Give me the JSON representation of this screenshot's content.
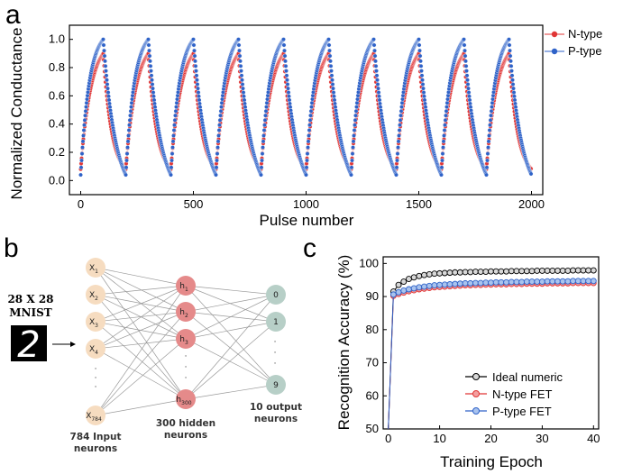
{
  "panels": {
    "a": "a",
    "b": "b",
    "c": "c"
  },
  "chart_data": [
    {
      "id": "a",
      "type": "scatter",
      "xlabel": "Pulse number",
      "ylabel": "Normalized Conductance",
      "xlim": [
        -50,
        2050
      ],
      "ylim": [
        -0.1,
        1.1
      ],
      "xticks": [
        0,
        500,
        1000,
        1500,
        2000
      ],
      "yticks": [
        0.0,
        0.2,
        0.4,
        0.6,
        0.8,
        1.0
      ],
      "legend_position": "top-right",
      "cycles": 10,
      "pulses_per_cycle": 200,
      "series": [
        {
          "name": "N-type",
          "color": "#e03535",
          "peak": 0.9,
          "min": 0.08,
          "rise_shape": 2.2,
          "fall_shape": 2.6
        },
        {
          "name": "P-type",
          "color": "#2e62c8",
          "peak": 1.0,
          "min": 0.04,
          "rise_shape": 2.6,
          "fall_shape": 1.8
        }
      ]
    },
    {
      "id": "c",
      "type": "line",
      "xlabel": "Training Epoch",
      "ylabel": "Recognition Accuracy (%)",
      "xlim": [
        -1,
        41
      ],
      "ylim": [
        50,
        102
      ],
      "xticks": [
        0,
        10,
        20,
        30,
        40
      ],
      "yticks": [
        50,
        60,
        70,
        80,
        90,
        100
      ],
      "legend_position": "bottom-right",
      "x": [
        0,
        1,
        2,
        3,
        4,
        5,
        6,
        7,
        8,
        9,
        10,
        11,
        12,
        13,
        14,
        15,
        16,
        17,
        18,
        19,
        20,
        21,
        22,
        23,
        24,
        25,
        26,
        27,
        28,
        29,
        30,
        31,
        32,
        33,
        34,
        35,
        36,
        37,
        38,
        39,
        40
      ],
      "series": [
        {
          "name": "Ideal numeric",
          "color": "#000000",
          "fill": "#d8d8d8",
          "values": [
            50,
            91.5,
            93.5,
            94.5,
            95.3,
            95.8,
            96.2,
            96.5,
            96.7,
            96.9,
            97.0,
            97.1,
            97.2,
            97.3,
            97.3,
            97.4,
            97.4,
            97.5,
            97.5,
            97.5,
            97.6,
            97.6,
            97.6,
            97.6,
            97.7,
            97.7,
            97.7,
            97.7,
            97.7,
            97.8,
            97.8,
            97.8,
            97.8,
            97.8,
            97.8,
            97.8,
            97.9,
            97.9,
            97.9,
            97.9,
            97.9
          ]
        },
        {
          "name": "N-type FET",
          "color": "#e03535",
          "fill": "#f3a0a0",
          "values": [
            50,
            90.2,
            90.8,
            91.2,
            91.6,
            91.9,
            92.2,
            92.4,
            92.6,
            92.8,
            92.9,
            93.0,
            93.1,
            93.2,
            93.3,
            93.4,
            93.4,
            93.5,
            93.5,
            93.6,
            93.6,
            93.7,
            93.7,
            93.7,
            93.8,
            93.8,
            93.8,
            93.9,
            93.9,
            93.9,
            93.9,
            94.0,
            94.0,
            94.0,
            94.0,
            94.0,
            94.1,
            94.1,
            94.1,
            94.1,
            94.1
          ]
        },
        {
          "name": "P-type FET",
          "color": "#2e62c8",
          "fill": "#a9c3ee",
          "values": [
            50,
            90.6,
            91.3,
            91.8,
            92.2,
            92.5,
            92.8,
            93.0,
            93.2,
            93.4,
            93.5,
            93.6,
            93.7,
            93.8,
            93.9,
            94.0,
            94.0,
            94.1,
            94.1,
            94.2,
            94.2,
            94.3,
            94.3,
            94.3,
            94.4,
            94.4,
            94.4,
            94.5,
            94.5,
            94.5,
            94.5,
            94.6,
            94.6,
            94.6,
            94.6,
            94.6,
            94.7,
            94.7,
            94.7,
            94.7,
            94.7
          ]
        }
      ]
    }
  ],
  "network": {
    "mnist_caption_line1": "28 X 28",
    "mnist_caption_line2": "MNIST",
    "mnist_digit": "2",
    "input_nodes": [
      "X1",
      "X2",
      "X3",
      "X4",
      "X784"
    ],
    "input_node_main": [
      "X",
      "X",
      "X",
      "X",
      "X"
    ],
    "input_node_sub": [
      "1",
      "2",
      "3",
      "4",
      "784"
    ],
    "hidden_node_main": [
      "h",
      "h",
      "h",
      "h"
    ],
    "hidden_node_sub": [
      "1",
      "2",
      "3",
      "300"
    ],
    "output_nodes": [
      "0",
      "1",
      "9"
    ],
    "input_caption_line1": "784 Input",
    "input_caption_line2": "neurons",
    "hidden_caption_line1": "300 hidden",
    "hidden_caption_line2": "neurons",
    "output_caption_line1": "10 output",
    "output_caption_line2": "neurons",
    "colors": {
      "input": "#f6dcc0",
      "hidden": "#e58a8a",
      "output": "#b7cfc7"
    }
  }
}
